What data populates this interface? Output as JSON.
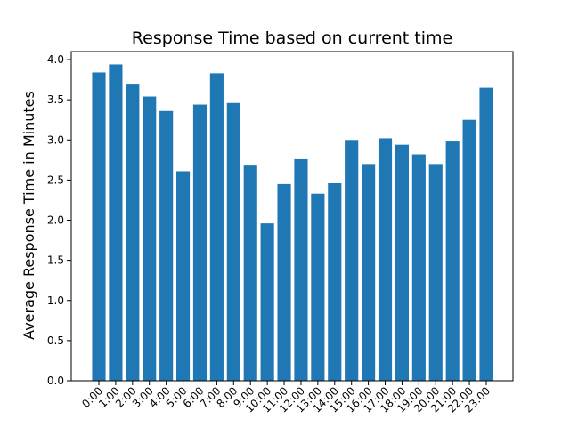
{
  "chart_data": {
    "type": "bar",
    "title": "Response Time based on current time",
    "xlabel": "",
    "ylabel": "Average Response Time in Minutes",
    "categories": [
      "0:00",
      "1:00",
      "2:00",
      "3:00",
      "4:00",
      "5:00",
      "6:00",
      "7:00",
      "8:00",
      "9:00",
      "10:00",
      "11:00",
      "12:00",
      "13:00",
      "14:00",
      "15:00",
      "16:00",
      "17:00",
      "18:00",
      "19:00",
      "20:00",
      "21:00",
      "22:00",
      "23:00"
    ],
    "values": [
      3.84,
      3.94,
      3.7,
      3.54,
      3.36,
      2.61,
      3.44,
      3.83,
      3.46,
      2.68,
      1.96,
      2.45,
      2.76,
      2.33,
      2.46,
      3.0,
      2.7,
      3.02,
      2.94,
      2.82,
      2.7,
      2.98,
      3.25,
      3.65
    ],
    "ylim": [
      0,
      4.1
    ],
    "yticks": [
      "0.0",
      "0.5",
      "1.0",
      "1.5",
      "2.0",
      "2.5",
      "3.0",
      "3.5",
      "4.0"
    ],
    "bar_color": "#1f77b4",
    "grid": false,
    "legend": "none"
  }
}
